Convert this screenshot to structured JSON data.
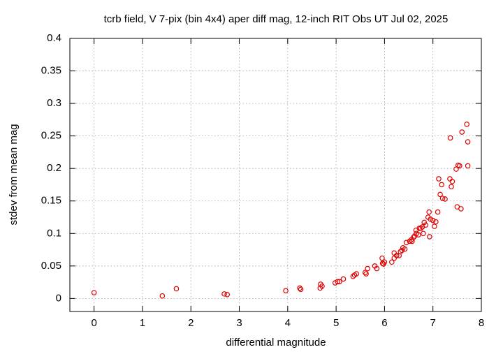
{
  "chart_data": {
    "type": "scatter",
    "title": "tcrb field, V 7-pix (bin 4x4) aper diff mag,  12-inch RIT Obs UT Jul 02, 2025",
    "x_label": "differential magnitude",
    "y_label": "stdev from mean mag",
    "xlim": [
      -0.5,
      8
    ],
    "xticks": [
      0,
      1,
      2,
      3,
      4,
      5,
      6,
      7,
      8
    ],
    "ylim": [
      -0.02,
      0.4
    ],
    "yticks": [
      0,
      0.05,
      0.1,
      0.15,
      0.2,
      0.25,
      0.3,
      0.35,
      0.4
    ],
    "grid": true,
    "color": "#e00000",
    "x": [
      0,
      1.41,
      1.7,
      2.69,
      2.75,
      3.96,
      4.25,
      4.27,
      4.68,
      4.67,
      4.71,
      4.98,
      5.03,
      5.07,
      5.15,
      5.35,
      5.38,
      5.42,
      5.6,
      5.62,
      5.65,
      5.8,
      5.84,
      5.95,
      5.96,
      5.98,
      6.0,
      6.15,
      6.2,
      6.2,
      6.25,
      6.3,
      6.33,
      6.36,
      6.38,
      6.42,
      6.45,
      6.52,
      6.55,
      6.57,
      6.6,
      6.62,
      6.65,
      6.66,
      6.7,
      6.72,
      6.75,
      6.78,
      6.8,
      6.82,
      6.85,
      6.9,
      6.92,
      6.93,
      6.95,
      7.0,
      7.03,
      7.06,
      7.1,
      7.12,
      7.15,
      7.18,
      7.2,
      7.25,
      7.35,
      7.36,
      7.38,
      7.4,
      7.48,
      7.5,
      7.52,
      7.55,
      7.58,
      7.6,
      7.7,
      7.72,
      7.72
    ],
    "values": [
      0.009,
      0.004,
      0.015,
      0.007,
      0.006,
      0.012,
      0.016,
      0.014,
      0.022,
      0.016,
      0.019,
      0.024,
      0.026,
      0.026,
      0.03,
      0.034,
      0.036,
      0.038,
      0.04,
      0.038,
      0.046,
      0.05,
      0.046,
      0.062,
      0.054,
      0.053,
      0.056,
      0.056,
      0.062,
      0.07,
      0.066,
      0.066,
      0.072,
      0.074,
      0.078,
      0.076,
      0.086,
      0.088,
      0.09,
      0.088,
      0.094,
      0.096,
      0.105,
      0.1,
      0.098,
      0.108,
      0.108,
      0.11,
      0.1,
      0.117,
      0.113,
      0.125,
      0.133,
      0.095,
      0.122,
      0.12,
      0.111,
      0.118,
      0.133,
      0.184,
      0.16,
      0.175,
      0.154,
      0.153,
      0.184,
      0.247,
      0.172,
      0.18,
      0.199,
      0.141,
      0.205,
      0.204,
      0.138,
      0.256,
      0.268,
      0.241,
      0.204
    ]
  }
}
